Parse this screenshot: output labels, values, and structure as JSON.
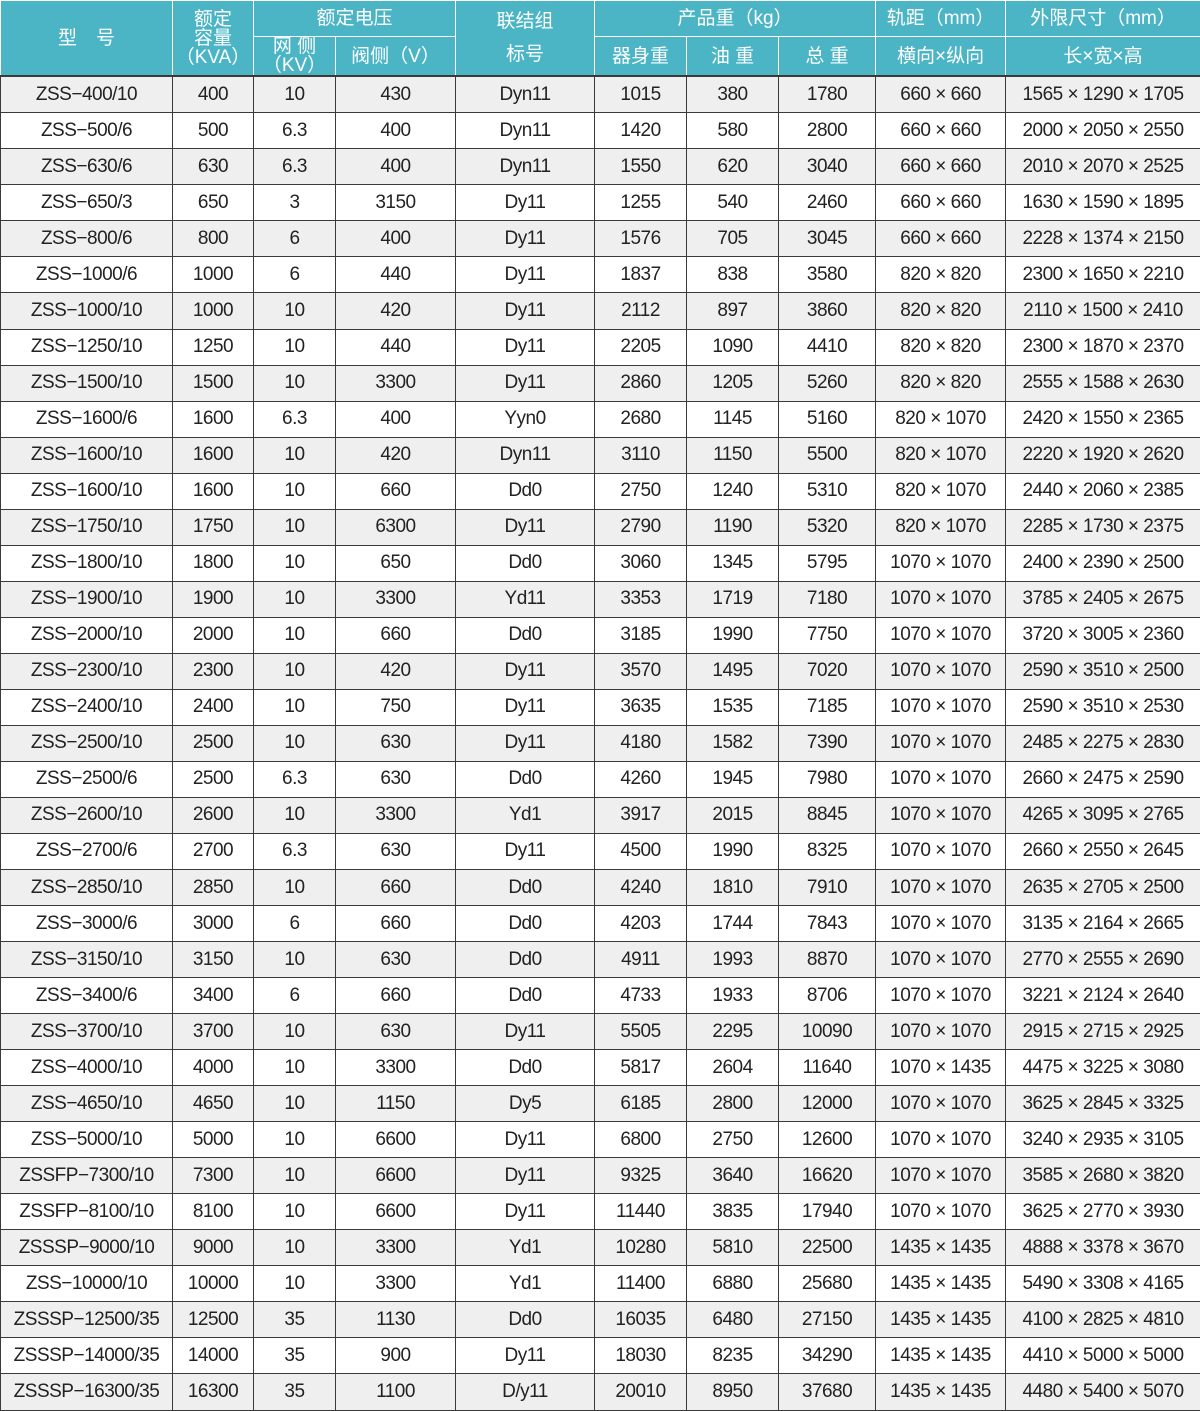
{
  "header": {
    "model": "型　号",
    "capacity": [
      "额定",
      "容量",
      "（KVA）"
    ],
    "rated_voltage": "额定电压",
    "grid_side": [
      "网 侧",
      "（KV）"
    ],
    "valve_side": "阀侧（V）",
    "connection": [
      "联结组",
      "标号"
    ],
    "weight": "产品重（kg）",
    "body_weight": "器身重",
    "oil_weight": "油 重",
    "total_weight": "总 重",
    "gauge": "轨距（mm）",
    "gauge_sub": "横向×纵向",
    "dims": "外限尺寸（mm）",
    "dims_sub": "长×宽×高"
  },
  "colors": {
    "header_bg": "#4bb5c5",
    "row_alt": "#efefef"
  },
  "rows": [
    [
      "ZSS−400/10",
      "400",
      "10",
      "430",
      "Dyn11",
      "1015",
      "380",
      "1780",
      "660 × 660",
      "1565 × 1290 × 1705"
    ],
    [
      "ZSS−500/6",
      "500",
      "6.3",
      "400",
      "Dyn11",
      "1420",
      "580",
      "2800",
      "660 × 660",
      "2000 × 2050 × 2550"
    ],
    [
      "ZSS−630/6",
      "630",
      "6.3",
      "400",
      "Dyn11",
      "1550",
      "620",
      "3040",
      "660 × 660",
      "2010 × 2070 × 2525"
    ],
    [
      "ZSS−650/3",
      "650",
      "3",
      "3150",
      "Dy11",
      "1255",
      "540",
      "2460",
      "660 × 660",
      "1630 × 1590 × 1895"
    ],
    [
      "ZSS−800/6",
      "800",
      "6",
      "400",
      "Dy11",
      "1576",
      "705",
      "3045",
      "660 × 660",
      "2228 × 1374 × 2150"
    ],
    [
      "ZSS−1000/6",
      "1000",
      "6",
      "440",
      "Dy11",
      "1837",
      "838",
      "3580",
      "820 × 820",
      "2300 × 1650 × 2210"
    ],
    [
      "ZSS−1000/10",
      "1000",
      "10",
      "420",
      "Dy11",
      "2112",
      "897",
      "3860",
      "820 × 820",
      "2110 × 1500 × 2410"
    ],
    [
      "ZSS−1250/10",
      "1250",
      "10",
      "440",
      "Dy11",
      "2205",
      "1090",
      "4410",
      "820 × 820",
      "2300 × 1870 × 2370"
    ],
    [
      "ZSS−1500/10",
      "1500",
      "10",
      "3300",
      "Dy11",
      "2860",
      "1205",
      "5260",
      "820 × 820",
      "2555 × 1588 × 2630"
    ],
    [
      "ZSS−1600/6",
      "1600",
      "6.3",
      "400",
      "Yyn0",
      "2680",
      "1145",
      "5160",
      "820 × 1070",
      "2420 × 1550 × 2365"
    ],
    [
      "ZSS−1600/10",
      "1600",
      "10",
      "420",
      "Dyn11",
      "3110",
      "1150",
      "5500",
      "820 × 1070",
      "2220 × 1920 × 2620"
    ],
    [
      "ZSS−1600/10",
      "1600",
      "10",
      "660",
      "Dd0",
      "2750",
      "1240",
      "5310",
      "820 × 1070",
      "2440 × 2060 × 2385"
    ],
    [
      "ZSS−1750/10",
      "1750",
      "10",
      "6300",
      "Dy11",
      "2790",
      "1190",
      "5320",
      "820 × 1070",
      "2285 × 1730 × 2375"
    ],
    [
      "ZSS−1800/10",
      "1800",
      "10",
      "650",
      "Dd0",
      "3060",
      "1345",
      "5795",
      "1070 × 1070",
      "2400 × 2390 × 2500"
    ],
    [
      "ZSS−1900/10",
      "1900",
      "10",
      "3300",
      "Yd11",
      "3353",
      "1719",
      "7180",
      "1070 × 1070",
      "3785 × 2405 × 2675"
    ],
    [
      "ZSS−2000/10",
      "2000",
      "10",
      "660",
      "Dd0",
      "3185",
      "1990",
      "7750",
      "1070 × 1070",
      "3720 × 3005 × 2360"
    ],
    [
      "ZSS−2300/10",
      "2300",
      "10",
      "420",
      "Dy11",
      "3570",
      "1495",
      "7020",
      "1070 × 1070",
      "2590 × 3510 × 2500"
    ],
    [
      "ZSS−2400/10",
      "2400",
      "10",
      "750",
      "Dy11",
      "3635",
      "1535",
      "7185",
      "1070 × 1070",
      "2590 × 3510 × 2530"
    ],
    [
      "ZSS−2500/10",
      "2500",
      "10",
      "630",
      "Dy11",
      "4180",
      "1582",
      "7390",
      "1070 × 1070",
      "2485 × 2275 × 2830"
    ],
    [
      "ZSS−2500/6",
      "2500",
      "6.3",
      "630",
      "Dd0",
      "4260",
      "1945",
      "7980",
      "1070 × 1070",
      "2660 × 2475 × 2590"
    ],
    [
      "ZSS−2600/10",
      "2600",
      "10",
      "3300",
      "Yd1",
      "3917",
      "2015",
      "8845",
      "1070 × 1070",
      "4265 × 3095 × 2765"
    ],
    [
      "ZSS−2700/6",
      "2700",
      "6.3",
      "630",
      "Dy11",
      "4500",
      "1990",
      "8325",
      "1070 × 1070",
      "2660 × 2550 × 2645"
    ],
    [
      "ZSS−2850/10",
      "2850",
      "10",
      "660",
      "Dd0",
      "4240",
      "1810",
      "7910",
      "1070 × 1070",
      "2635 × 2705 × 2500"
    ],
    [
      "ZSS−3000/6",
      "3000",
      "6",
      "660",
      "Dd0",
      "4203",
      "1744",
      "7843",
      "1070 × 1070",
      "3135 × 2164 × 2665"
    ],
    [
      "ZSS−3150/10",
      "3150",
      "10",
      "630",
      "Dd0",
      "4911",
      "1993",
      "8870",
      "1070 × 1070",
      "2770 × 2555 × 2690"
    ],
    [
      "ZSS−3400/6",
      "3400",
      "6",
      "660",
      "Dd0",
      "4733",
      "1933",
      "8706",
      "1070 × 1070",
      "3221 × 2124 × 2640"
    ],
    [
      "ZSS−3700/10",
      "3700",
      "10",
      "630",
      "Dy11",
      "5505",
      "2295",
      "10090",
      "1070 × 1070",
      "2915 × 2715 × 2925"
    ],
    [
      "ZSS−4000/10",
      "4000",
      "10",
      "3300",
      "Dd0",
      "5817",
      "2604",
      "11640",
      "1070 × 1435",
      "4475 × 3225 × 3080"
    ],
    [
      "ZSS−4650/10",
      "4650",
      "10",
      "1150",
      "Dy5",
      "6185",
      "2800",
      "12000",
      "1070 × 1070",
      "3625 × 2845 × 3325"
    ],
    [
      "ZSS−5000/10",
      "5000",
      "10",
      "6600",
      "Dy11",
      "6800",
      "2750",
      "12600",
      "1070 × 1070",
      "3240 × 2935 × 3105"
    ],
    [
      "ZSSFP−7300/10",
      "7300",
      "10",
      "6600",
      "Dy11",
      "9325",
      "3640",
      "16620",
      "1070 × 1070",
      "3585 × 2680 × 3820"
    ],
    [
      "ZSSFP−8100/10",
      "8100",
      "10",
      "6600",
      "Dy11",
      "11440",
      "3835",
      "17940",
      "1070 × 1070",
      "3625 × 2770 × 3930"
    ],
    [
      "ZSSSP−9000/10",
      "9000",
      "10",
      "3300",
      "Yd1",
      "10280",
      "5810",
      "22500",
      "1435 × 1435",
      "4888 × 3378 × 3670"
    ],
    [
      "ZSS−10000/10",
      "10000",
      "10",
      "3300",
      "Yd1",
      "11400",
      "6880",
      "25680",
      "1435 × 1435",
      "5490 × 3308 × 4165"
    ],
    [
      "ZSSSP−12500/35",
      "12500",
      "35",
      "1130",
      "Dd0",
      "16035",
      "6480",
      "27150",
      "1435 × 1435",
      "4100 × 2825 × 4810"
    ],
    [
      "ZSSSP−14000/35",
      "14000",
      "35",
      "900",
      "Dy11",
      "18030",
      "8235",
      "34290",
      "1435 × 1435",
      "4410 × 5000 × 5000"
    ],
    [
      "ZSSSP−16300/35",
      "16300",
      "35",
      "1100",
      "D/y11",
      "20010",
      "8950",
      "37680",
      "1435 × 1435",
      "4480 × 5400 × 5070"
    ]
  ]
}
